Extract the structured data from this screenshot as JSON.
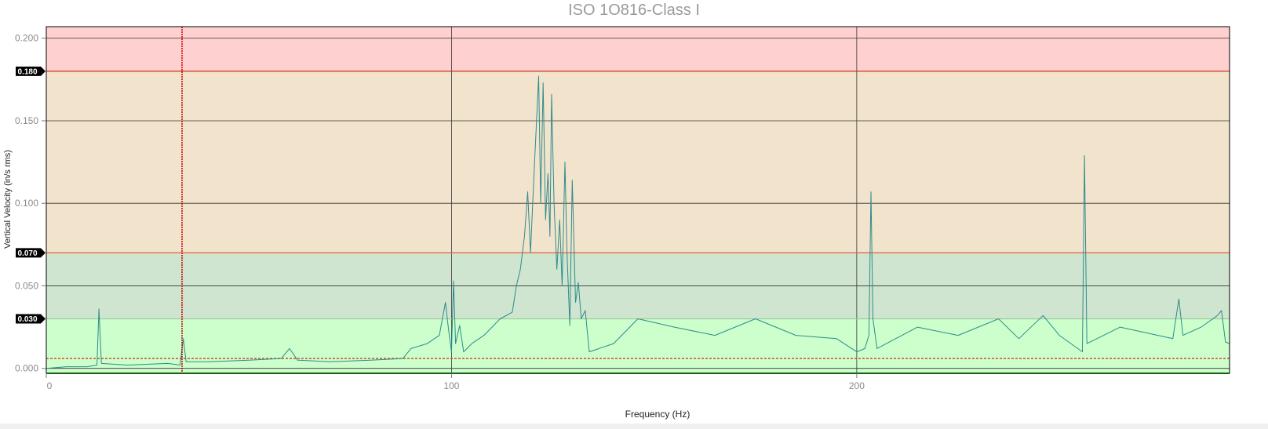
{
  "chart_data": {
    "type": "line",
    "title": "ISO 1O816-Class I",
    "xlabel": "Frequency (Hz)",
    "ylabel": "Vertical Velocity (in/s rms)",
    "xlim": [
      0,
      292
    ],
    "ylim": [
      -0.003,
      0.207
    ],
    "x_ticks": [
      0,
      100,
      200
    ],
    "y_ticks": [
      0.0,
      0.05,
      0.1,
      0.15,
      0.2
    ],
    "y_tick_labels": [
      "0.000",
      "0.050",
      "0.100",
      "0.150",
      "0.200"
    ],
    "grid": true,
    "zones": [
      {
        "from": -0.003,
        "to": 0.03,
        "color": "#ccffcc"
      },
      {
        "from": 0.03,
        "to": 0.07,
        "color": "#cfe5cf"
      },
      {
        "from": 0.07,
        "to": 0.18,
        "color": "#f2e4cc"
      },
      {
        "from": 0.18,
        "to": 0.207,
        "color": "#ffd0d0"
      }
    ],
    "thresholds": [
      {
        "value": 0.18,
        "label": "0.180",
        "color": "#cc2200"
      },
      {
        "value": 0.07,
        "label": "0.070",
        "color": "#e0603a"
      },
      {
        "value": 0.03,
        "label": "0.030",
        "color": "#99cc99"
      }
    ],
    "reference_line": {
      "value": 0.006,
      "color": "#d04020"
    },
    "cursor_x": 33.5,
    "series": [
      {
        "color": "#2e8b8b",
        "points": [
          [
            0,
            0.0
          ],
          [
            5,
            0.001
          ],
          [
            10,
            0.001
          ],
          [
            12.5,
            0.002
          ],
          [
            13,
            0.036
          ],
          [
            13.6,
            0.003
          ],
          [
            20,
            0.002
          ],
          [
            30,
            0.003
          ],
          [
            33,
            0.002
          ],
          [
            33.8,
            0.018
          ],
          [
            34.5,
            0.004
          ],
          [
            40,
            0.004
          ],
          [
            50,
            0.005
          ],
          [
            58,
            0.006
          ],
          [
            60,
            0.012
          ],
          [
            62,
            0.005
          ],
          [
            70,
            0.004
          ],
          [
            80,
            0.005
          ],
          [
            88,
            0.006
          ],
          [
            90,
            0.012
          ],
          [
            94,
            0.015
          ],
          [
            97,
            0.02
          ],
          [
            98.5,
            0.04
          ],
          [
            99.2,
            0.025
          ],
          [
            100,
            0.01
          ],
          [
            100.5,
            0.053
          ],
          [
            101,
            0.015
          ],
          [
            102,
            0.026
          ],
          [
            103,
            0.01
          ],
          [
            105,
            0.015
          ],
          [
            108,
            0.02
          ],
          [
            110,
            0.025
          ],
          [
            112,
            0.03
          ],
          [
            115,
            0.034
          ],
          [
            116,
            0.05
          ],
          [
            117,
            0.06
          ],
          [
            118,
            0.08
          ],
          [
            118.8,
            0.107
          ],
          [
            119.5,
            0.07
          ],
          [
            120.3,
            0.115
          ],
          [
            121.5,
            0.177
          ],
          [
            122,
            0.1
          ],
          [
            122.6,
            0.173
          ],
          [
            123.2,
            0.09
          ],
          [
            123.8,
            0.118
          ],
          [
            124.3,
            0.08
          ],
          [
            124.7,
            0.166
          ],
          [
            125.3,
            0.1
          ],
          [
            126,
            0.06
          ],
          [
            126.7,
            0.09
          ],
          [
            127.3,
            0.05
          ],
          [
            128,
            0.125
          ],
          [
            128.5,
            0.07
          ],
          [
            129.2,
            0.026
          ],
          [
            129.8,
            0.114
          ],
          [
            130.6,
            0.04
          ],
          [
            131.3,
            0.052
          ],
          [
            132,
            0.03
          ],
          [
            133,
            0.035
          ],
          [
            134,
            0.01
          ],
          [
            140,
            0.015
          ],
          [
            146,
            0.03
          ],
          [
            155,
            0.025
          ],
          [
            165,
            0.02
          ],
          [
            175,
            0.03
          ],
          [
            185,
            0.02
          ],
          [
            195,
            0.018
          ],
          [
            200,
            0.01
          ],
          [
            202,
            0.012
          ],
          [
            203,
            0.02
          ],
          [
            203.5,
            0.107
          ],
          [
            204,
            0.03
          ],
          [
            205,
            0.012
          ],
          [
            215,
            0.025
          ],
          [
            225,
            0.02
          ],
          [
            235,
            0.03
          ],
          [
            240,
            0.018
          ],
          [
            246,
            0.032
          ],
          [
            250,
            0.02
          ],
          [
            255.7,
            0.01
          ],
          [
            256.2,
            0.129
          ],
          [
            256.8,
            0.015
          ],
          [
            265,
            0.025
          ],
          [
            278,
            0.018
          ],
          [
            279.5,
            0.042
          ],
          [
            280.5,
            0.02
          ],
          [
            285,
            0.025
          ],
          [
            289,
            0.032
          ],
          [
            290,
            0.035
          ],
          [
            291,
            0.016
          ],
          [
            292,
            0.015
          ]
        ]
      }
    ]
  }
}
